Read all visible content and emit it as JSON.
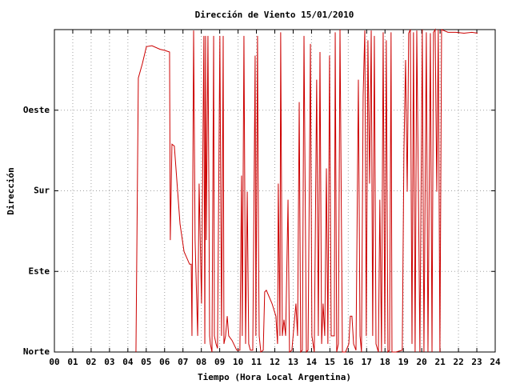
{
  "chart_data": {
    "type": "line",
    "title": "Dirección de Viento 15/01/2010",
    "xlabel": "Tiempo (Hora Local Argentina)",
    "ylabel": "Dirección",
    "color": "#cc0000",
    "grid": true,
    "xlim": [
      0,
      24
    ],
    "xticks": [
      {
        "value": 0,
        "label": "00"
      },
      {
        "value": 1,
        "label": "01"
      },
      {
        "value": 2,
        "label": "02"
      },
      {
        "value": 3,
        "label": "03"
      },
      {
        "value": 4,
        "label": "04"
      },
      {
        "value": 5,
        "label": "05"
      },
      {
        "value": 6,
        "label": "06"
      },
      {
        "value": 7,
        "label": "07"
      },
      {
        "value": 8,
        "label": "08"
      },
      {
        "value": 9,
        "label": "09"
      },
      10,
      11,
      12,
      13,
      14,
      15,
      16,
      17,
      18,
      19,
      20,
      21,
      22,
      23,
      24
    ],
    "ylim": [
      0,
      360
    ],
    "yticks": [
      {
        "value": 0,
        "label": "Norte"
      },
      {
        "value": 90,
        "label": "Este"
      },
      {
        "value": 180,
        "label": "Sur"
      },
      {
        "value": 270,
        "label": "Oeste"
      }
    ],
    "x": [
      4.44,
      4.57,
      4.79,
      5.01,
      5.31,
      5.75,
      5.97,
      6.27,
      6.31,
      6.4,
      6.53,
      6.84,
      7.06,
      7.36,
      7.45,
      7.49,
      7.58,
      7.66,
      7.8,
      7.88,
      8.01,
      8.14,
      8.19,
      8.23,
      8.27,
      8.36,
      8.41,
      8.45,
      8.49,
      8.58,
      8.67,
      8.71,
      8.8,
      8.88,
      9.01,
      9.1,
      9.19,
      9.23,
      9.32,
      9.41,
      9.49,
      9.67,
      9.93,
      10.1,
      10.19,
      10.23,
      10.32,
      10.41,
      10.5,
      10.58,
      10.67,
      10.8,
      10.93,
      10.97,
      11.06,
      11.11,
      11.15,
      11.24,
      11.37,
      11.45,
      11.54,
      11.85,
      12.06,
      12.15,
      12.19,
      12.28,
      12.32,
      12.41,
      12.5,
      12.59,
      12.72,
      12.8,
      12.93,
      13.15,
      13.24,
      13.33,
      13.41,
      13.5,
      13.59,
      13.72,
      13.81,
      13.94,
      14.02,
      14.15,
      14.28,
      14.37,
      14.46,
      14.55,
      14.63,
      14.72,
      14.81,
      14.89,
      14.98,
      15.07,
      15.24,
      15.29,
      15.37,
      15.46,
      15.55,
      15.68,
      15.85,
      16.03,
      16.11,
      16.2,
      16.29,
      16.42,
      16.55,
      16.64,
      16.72,
      16.81,
      16.9,
      16.98,
      17.07,
      17.16,
      17.25,
      17.33,
      17.42,
      17.51,
      17.64,
      17.72,
      17.81,
      17.9,
      17.99,
      18.07,
      18.16,
      18.25,
      18.33,
      18.38,
      18.6,
      18.94,
      19.03,
      19.12,
      19.21,
      19.29,
      19.38,
      19.47,
      19.55,
      19.64,
      19.73,
      19.82,
      19.9,
      20.03,
      20.12,
      20.25,
      20.34,
      20.47,
      20.56,
      20.64,
      20.73,
      20.82,
      20.9,
      20.99,
      21.08,
      21.43,
      21.86,
      22.3,
      22.73,
      23.04
    ],
    "values": [
      0,
      306,
      322,
      341,
      342,
      338,
      337,
      335,
      125,
      232,
      230,
      143,
      112,
      98,
      98,
      18,
      359,
      125,
      18,
      188,
      54,
      353,
      9,
      353,
      125,
      353,
      183,
      18,
      9,
      0,
      353,
      18,
      9,
      4,
      353,
      18,
      353,
      9,
      18,
      40,
      18,
      13,
      2,
      2,
      197,
      18,
      353,
      9,
      179,
      9,
      2,
      2,
      331,
      18,
      353,
      125,
      18,
      0,
      2,
      67,
      69,
      54,
      40,
      9,
      188,
      18,
      357,
      18,
      36,
      18,
      170,
      0,
      2,
      54,
      18,
      279,
      0,
      2,
      353,
      0,
      2,
      344,
      18,
      0,
      304,
      18,
      335,
      9,
      54,
      18,
      205,
      9,
      331,
      18,
      18,
      357,
      0,
      9,
      360,
      0,
      0,
      9,
      40,
      40,
      9,
      2,
      304,
      18,
      0,
      286,
      359,
      18,
      348,
      188,
      359,
      18,
      353,
      9,
      0,
      170,
      0,
      357,
      9,
      348,
      0,
      2,
      357,
      0,
      0,
      2,
      223,
      326,
      179,
      356,
      360,
      9,
      357,
      0,
      359,
      179,
      0,
      360,
      0,
      357,
      0,
      356,
      0,
      357,
      360,
      179,
      360,
      0,
      360,
      357,
      357,
      356,
      357,
      356
    ]
  }
}
